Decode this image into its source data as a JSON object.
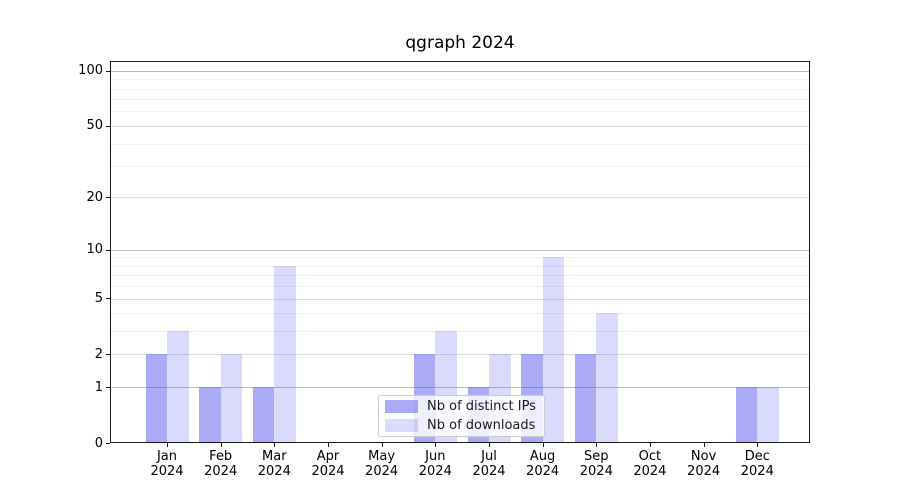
{
  "title": "qgraph 2024",
  "chart_data": {
    "type": "bar",
    "title": "qgraph 2024",
    "categories": [
      "Jan",
      "Feb",
      "Mar",
      "Apr",
      "May",
      "Jun",
      "Jul",
      "Aug",
      "Sep",
      "Oct",
      "Nov",
      "Dec"
    ],
    "category_year": "2024",
    "series": [
      {
        "name": "Nb of distinct IPs",
        "color": "rgba(85,85,240,0.5)",
        "color_hex_on_white": "#aaaaf7",
        "values": [
          2,
          1,
          1,
          0,
          0,
          2,
          1,
          2,
          2,
          0,
          0,
          1
        ]
      },
      {
        "name": "Nb of downloads",
        "color": "rgba(85,85,240,0.22)",
        "color_hex_on_white": "#dadafc",
        "values": [
          3,
          2,
          8,
          0,
          0,
          3,
          2,
          9,
          4,
          0,
          0,
          1
        ]
      }
    ],
    "y_axis": {
      "scale": "log1p",
      "tick_values": [
        0,
        1,
        2,
        5,
        10,
        20,
        50,
        100
      ],
      "tick_labels": [
        "0",
        "1",
        "2",
        "5",
        "10",
        "20",
        "50",
        "100"
      ],
      "minor_gridlines": [
        3,
        4,
        6,
        7,
        8,
        9,
        30,
        40,
        60,
        70,
        80,
        90
      ],
      "max": 113
    },
    "x_axis": {
      "tick_labels_line1": [
        "Jan",
        "Feb",
        "Mar",
        "Apr",
        "May",
        "Jun",
        "Jul",
        "Aug",
        "Sep",
        "Oct",
        "Nov",
        "Dec"
      ],
      "tick_labels_line2": "2024"
    },
    "legend_position": "lower center",
    "grid": true
  },
  "legend": {
    "items": [
      {
        "label": "Nb of distinct IPs"
      },
      {
        "label": "Nb of downloads"
      }
    ]
  },
  "colors": {
    "background": "#ffffff",
    "spine": "#1a1a1a",
    "grid_major": "#bdbdbd",
    "grid_mid": "#dcdcdc",
    "grid_minor": "#eeeeee",
    "bar_dark": "#aaaaf7",
    "bar_light": "#dadafc",
    "legend_border": "#cccccc"
  }
}
